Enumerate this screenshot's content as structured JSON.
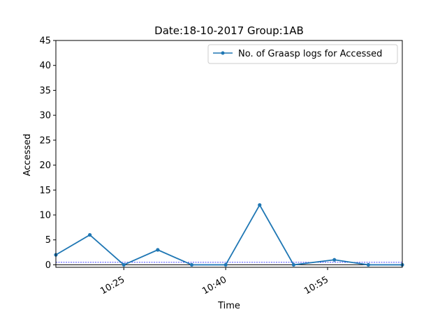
{
  "chart_data": {
    "type": "line",
    "title": "Date:18-10-2017  Group:1AB",
    "xlabel": "Time",
    "ylabel": "Accessed",
    "xlim_minutes": [
      10.25,
      10.95
    ],
    "x_ticks": [
      {
        "label": "10:25",
        "value": "10:25"
      },
      {
        "label": "10:40",
        "value": "10:40"
      },
      {
        "label": "10:55",
        "value": "10:55"
      }
    ],
    "ylim": [
      -0.5,
      45
    ],
    "y_ticks": [
      0,
      5,
      10,
      15,
      20,
      25,
      30,
      35,
      40,
      45
    ],
    "series": [
      {
        "name": "No. of Graasp logs for Accessed",
        "color": "#1f77b4",
        "points": [
          {
            "x": "10:15",
            "y": 2
          },
          {
            "x": "10:20",
            "y": 6
          },
          {
            "x": "10:25",
            "y": 0
          },
          {
            "x": "10:30",
            "y": 3
          },
          {
            "x": "10:35",
            "y": 0
          },
          {
            "x": "10:40",
            "y": 0
          },
          {
            "x": "10:45",
            "y": 12
          },
          {
            "x": "10:50",
            "y": 0
          },
          {
            "x": "10:56",
            "y": 1
          },
          {
            "x": "11:01",
            "y": 0
          },
          {
            "x": "11:06",
            "y": 0
          }
        ]
      }
    ],
    "reference_line": {
      "y": 0.5,
      "color": "#0000ff",
      "style": "dashed"
    },
    "baseline": {
      "y": 0,
      "color": "#000000"
    },
    "legend": "top-right",
    "grid": false
  }
}
